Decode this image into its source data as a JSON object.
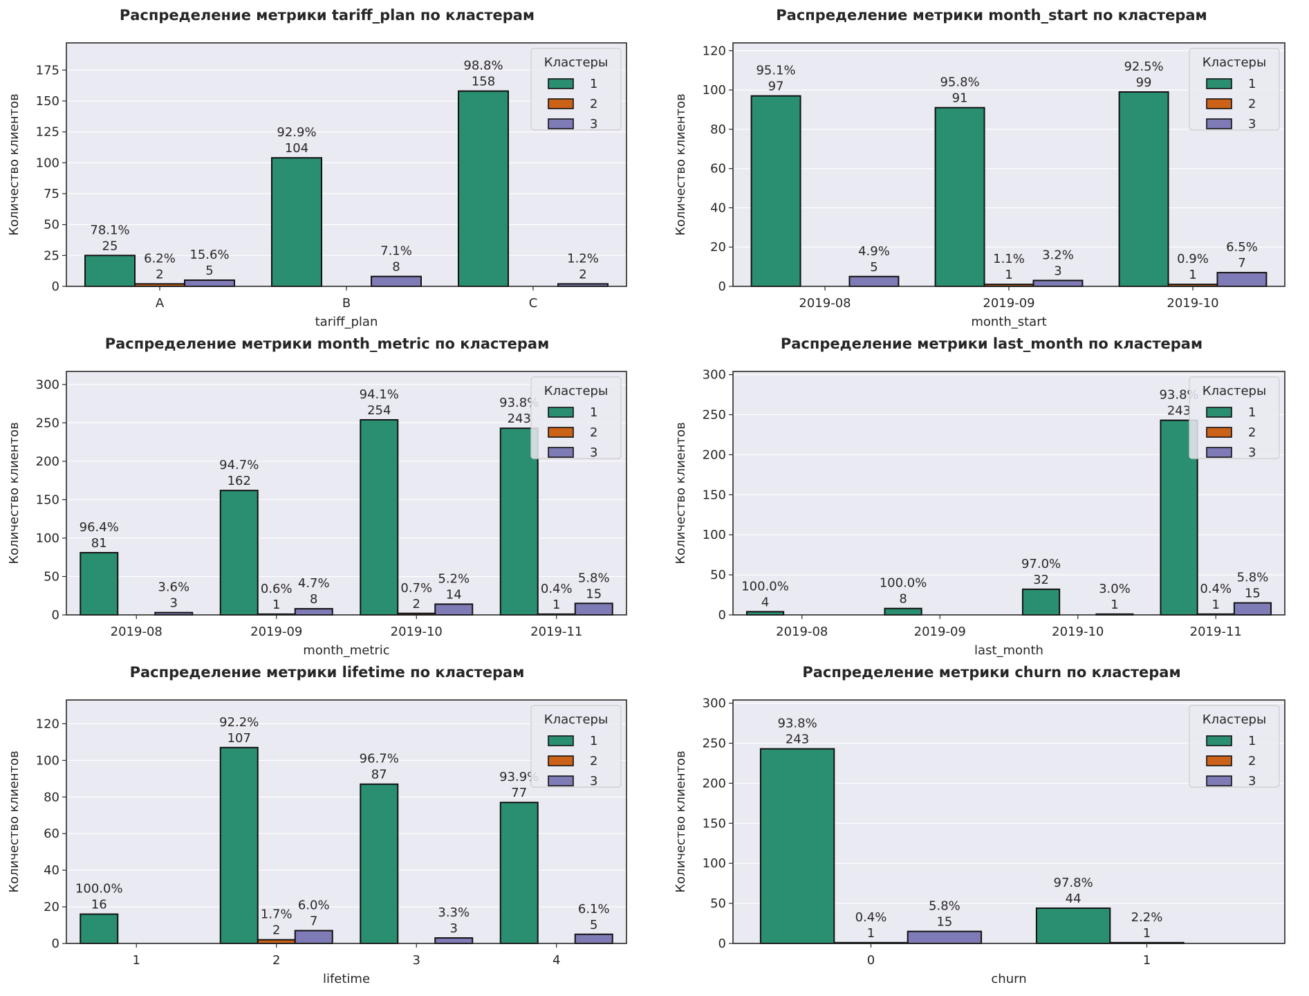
{
  "colors": {
    "1": "#2a8e70",
    "2": "#cc6218",
    "3": "#7f7bb6",
    "plot_bg": "#eaeaf2"
  },
  "legend_title": "Кластеры",
  "ylabel": "Количество клиентов",
  "chart_data": [
    {
      "type": "bar",
      "title": "Распределение метрики tariff_plan по кластерам",
      "xlabel": "tariff_plan",
      "ylabel": "Количество клиентов",
      "ylim": [
        0,
        197
      ],
      "yticks": [
        0,
        25,
        50,
        75,
        100,
        125,
        150,
        175
      ],
      "categories": [
        "A",
        "B",
        "C"
      ],
      "legend": {
        "title": "Кластеры",
        "position": "upper right",
        "entries": [
          "1",
          "2",
          "3"
        ]
      },
      "series": [
        {
          "name": "1",
          "values": [
            25,
            104,
            158
          ],
          "labels": [
            "78.1%",
            "92.9%",
            "98.8%"
          ]
        },
        {
          "name": "2",
          "values": [
            2,
            0,
            0
          ],
          "labels": [
            "6.2%",
            "",
            ""
          ]
        },
        {
          "name": "3",
          "values": [
            5,
            8,
            2
          ],
          "labels": [
            "15.6%",
            "7.1%",
            "1.2%"
          ]
        }
      ]
    },
    {
      "type": "bar",
      "title": "Распределение метрики month_start по кластерам",
      "xlabel": "month_start",
      "ylabel": "Количество клиентов",
      "ylim": [
        0,
        124
      ],
      "yticks": [
        0,
        20,
        40,
        60,
        80,
        100,
        120
      ],
      "categories": [
        "2019-08",
        "2019-09",
        "2019-10"
      ],
      "legend": {
        "title": "Кластеры",
        "position": "upper right",
        "entries": [
          "1",
          "2",
          "3"
        ]
      },
      "series": [
        {
          "name": "1",
          "values": [
            97,
            91,
            99
          ],
          "labels": [
            "95.1%",
            "95.8%",
            "92.5%"
          ]
        },
        {
          "name": "2",
          "values": [
            0,
            1,
            1
          ],
          "labels": [
            "",
            "1.1%",
            "0.9%"
          ]
        },
        {
          "name": "3",
          "values": [
            5,
            3,
            7
          ],
          "labels": [
            "4.9%",
            "3.2%",
            "6.5%"
          ]
        }
      ]
    },
    {
      "type": "bar",
      "title": "Распределение метрики month_metric по кластерам",
      "xlabel": "month_metric",
      "ylabel": "Количество клиентов",
      "ylim": [
        0,
        317
      ],
      "yticks": [
        0,
        50,
        100,
        150,
        200,
        250,
        300
      ],
      "categories": [
        "2019-08",
        "2019-09",
        "2019-10",
        "2019-11"
      ],
      "legend": {
        "title": "Кластеры",
        "position": "upper right",
        "entries": [
          "1",
          "2",
          "3"
        ]
      },
      "series": [
        {
          "name": "1",
          "values": [
            81,
            162,
            254,
            243
          ],
          "labels": [
            "96.4%",
            "94.7%",
            "94.1%",
            "93.8%"
          ]
        },
        {
          "name": "2",
          "values": [
            0,
            1,
            2,
            1
          ],
          "labels": [
            "",
            "0.6%",
            "0.7%",
            "0.4%"
          ]
        },
        {
          "name": "3",
          "values": [
            3,
            8,
            14,
            15
          ],
          "labels": [
            "3.6%",
            "4.7%",
            "5.2%",
            "5.8%"
          ]
        }
      ]
    },
    {
      "type": "bar",
      "title": "Распределение метрики last_month по кластерам",
      "xlabel": "last_month",
      "ylabel": "Количество клиентов",
      "ylim": [
        0,
        304
      ],
      "yticks": [
        0,
        50,
        100,
        150,
        200,
        250,
        300
      ],
      "categories": [
        "2019-08",
        "2019-09",
        "2019-10",
        "2019-11"
      ],
      "legend": {
        "title": "Кластеры",
        "position": "upper right",
        "entries": [
          "1",
          "2",
          "3"
        ]
      },
      "series": [
        {
          "name": "1",
          "values": [
            4,
            8,
            32,
            243
          ],
          "labels": [
            "100.0%",
            "100.0%",
            "97.0%",
            "93.8%"
          ]
        },
        {
          "name": "2",
          "values": [
            0,
            0,
            0,
            1
          ],
          "labels": [
            "",
            "",
            "",
            "0.4%"
          ]
        },
        {
          "name": "3",
          "values": [
            0,
            0,
            1,
            15
          ],
          "labels": [
            "",
            "",
            "3.0%",
            "5.8%"
          ]
        }
      ]
    },
    {
      "type": "bar",
      "title": "Распределение метрики lifetime по кластерам",
      "xlabel": "lifetime",
      "ylabel": "Количество клиентов",
      "ylim": [
        0,
        133
      ],
      "yticks": [
        0,
        20,
        40,
        60,
        80,
        100,
        120
      ],
      "categories": [
        "1",
        "2",
        "3",
        "4"
      ],
      "legend": {
        "title": "Кластеры",
        "position": "upper right",
        "entries": [
          "1",
          "2",
          "3"
        ]
      },
      "series": [
        {
          "name": "1",
          "values": [
            16,
            107,
            87,
            77
          ],
          "labels": [
            "100.0%",
            "92.2%",
            "96.7%",
            "93.9%"
          ]
        },
        {
          "name": "2",
          "values": [
            0,
            2,
            0,
            0
          ],
          "labels": [
            "",
            "1.7%",
            "",
            ""
          ]
        },
        {
          "name": "3",
          "values": [
            0,
            7,
            3,
            5
          ],
          "labels": [
            "",
            "6.0%",
            "3.3%",
            "6.1%"
          ]
        }
      ]
    },
    {
      "type": "bar",
      "title": "Распределение метрики churn по кластерам",
      "xlabel": "churn",
      "ylabel": "Количество клиентов",
      "ylim": [
        0,
        304
      ],
      "yticks": [
        0,
        50,
        100,
        150,
        200,
        250,
        300
      ],
      "categories": [
        "0",
        "1"
      ],
      "legend": {
        "title": "Кластеры",
        "position": "upper right",
        "entries": [
          "1",
          "2",
          "3"
        ]
      },
      "series": [
        {
          "name": "1",
          "values": [
            243,
            44
          ],
          "labels": [
            "93.8%",
            "97.8%"
          ]
        },
        {
          "name": "2",
          "values": [
            1,
            1
          ],
          "labels": [
            "0.4%",
            "2.2%"
          ]
        },
        {
          "name": "3",
          "values": [
            15,
            0
          ],
          "labels": [
            "5.8%",
            ""
          ]
        }
      ]
    }
  ]
}
